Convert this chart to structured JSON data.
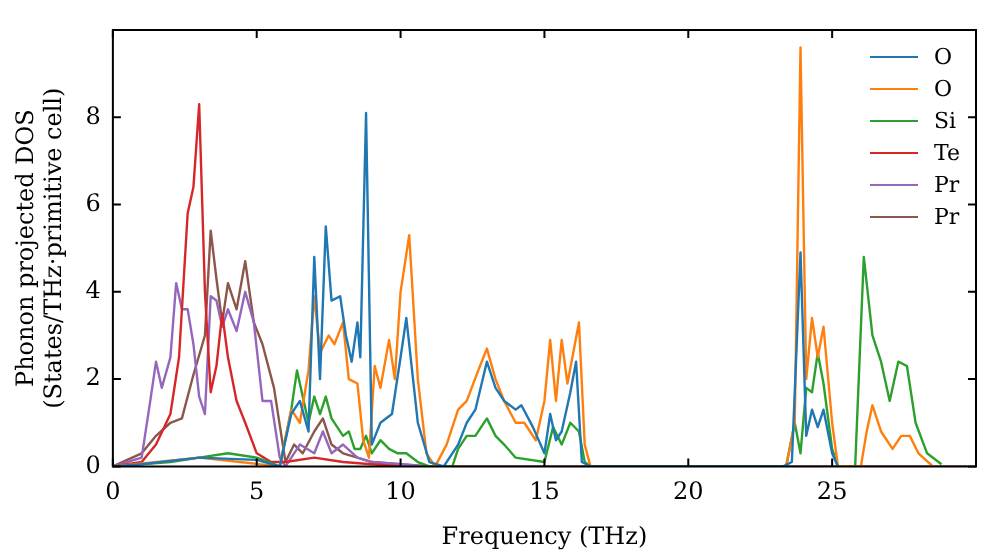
{
  "chart_data": {
    "type": "line",
    "xlabel": "Frequency (THz)",
    "ylabel": "Phonon projected DOS\n(States/THz·primitive cell)",
    "xlim": [
      0,
      30
    ],
    "xticks": [
      0,
      5,
      10,
      15,
      20,
      25
    ],
    "ylim": [
      0,
      10
    ],
    "yticks": [
      0,
      2,
      4,
      6,
      8
    ],
    "grid": false,
    "legend": "top right",
    "marker": "none",
    "line_style": "solid",
    "series": [
      {
        "name": "O",
        "color": "#1f77b4",
        "x": [
          0,
          1,
          3,
          5,
          5.8,
          6.2,
          6.5,
          6.8,
          7.0,
          7.2,
          7.4,
          7.6,
          7.9,
          8.1,
          8.3,
          8.5,
          8.6,
          8.8,
          9.0,
          9.3,
          9.7,
          10.0,
          10.2,
          10.6,
          11,
          11.5,
          12,
          12.3,
          12.6,
          13.0,
          13.3,
          13.6,
          14.0,
          14.2,
          14.6,
          15.0,
          15.2,
          15.4,
          15.6,
          15.9,
          16.1,
          16.3,
          16.6,
          23.3,
          23.6,
          23.9,
          24.1,
          24.3,
          24.5,
          24.7,
          25.0,
          25.2
        ],
        "values": [
          0,
          0.05,
          0.2,
          0.15,
          0,
          1.2,
          1.5,
          0.8,
          4.8,
          2.0,
          5.5,
          3.8,
          3.9,
          3.0,
          2.4,
          3.3,
          2.5,
          8.1,
          0.5,
          1.0,
          1.2,
          2.5,
          3.4,
          1.0,
          0.1,
          0,
          0.5,
          1.0,
          1.3,
          2.4,
          1.8,
          1.5,
          1.3,
          1.4,
          0.9,
          0.3,
          1.2,
          0.6,
          0.8,
          1.7,
          2.4,
          0.1,
          0,
          0,
          0.1,
          4.9,
          0.7,
          1.3,
          0.9,
          1.3,
          0.3,
          0
        ]
      },
      {
        "name": "O",
        "color": "#ff7f0e",
        "x": [
          0,
          3,
          5.8,
          6.2,
          6.5,
          6.8,
          7.0,
          7.2,
          7.5,
          7.7,
          8.0,
          8.2,
          8.5,
          8.7,
          8.9,
          9.1,
          9.3,
          9.6,
          9.8,
          10.0,
          10.3,
          10.6,
          10.9,
          11.2,
          11.6,
          12.0,
          12.3,
          12.7,
          13.0,
          13.3,
          13.6,
          14.0,
          14.3,
          14.7,
          15.0,
          15.2,
          15.4,
          15.6,
          15.8,
          16.0,
          16.2,
          16.4,
          16.6,
          23.4,
          23.7,
          23.9,
          24.1,
          24.3,
          24.5,
          24.7,
          25.0,
          25.2,
          26,
          26.2,
          26.4,
          26.7,
          27.1,
          27.4,
          27.7,
          28.0,
          28.5
        ],
        "values": [
          0,
          0.2,
          0,
          1.3,
          1.0,
          2.2,
          3.9,
          2.6,
          3.0,
          2.8,
          3.3,
          2.0,
          1.9,
          0.6,
          0.2,
          2.3,
          1.8,
          2.9,
          2.0,
          4.0,
          5.3,
          2.0,
          0.3,
          0,
          0.5,
          1.3,
          1.5,
          2.2,
          2.7,
          2.0,
          1.5,
          1.0,
          1.0,
          0.6,
          1.5,
          2.9,
          1.5,
          2.9,
          1.9,
          2.6,
          3.3,
          0.5,
          0,
          0,
          1.0,
          9.6,
          2.0,
          3.4,
          2.5,
          3.2,
          1.0,
          0,
          0,
          0.8,
          1.4,
          0.8,
          0.4,
          0.7,
          0.7,
          0.3,
          0
        ]
      },
      {
        "name": "Si",
        "color": "#2ca02c",
        "x": [
          0,
          2,
          3,
          4,
          5,
          5.8,
          6.2,
          6.4,
          6.8,
          7.0,
          7.2,
          7.4,
          7.6,
          8.0,
          8.2,
          8.4,
          8.6,
          8.8,
          9.0,
          9.3,
          9.6,
          9.9,
          10.2,
          10.6,
          11,
          11.8,
          12.0,
          12.3,
          12.6,
          13.0,
          13.3,
          13.6,
          14,
          15,
          15.3,
          15.6,
          15.9,
          16.2,
          16.4,
          16.6,
          23.4,
          23.7,
          23.9,
          24.1,
          24.3,
          24.5,
          24.7,
          25.0,
          25.2,
          25.8,
          26.1,
          26.4,
          26.7,
          27.0,
          27.3,
          27.6,
          27.9,
          28.3,
          28.8
        ],
        "values": [
          0,
          0.1,
          0.2,
          0.3,
          0.2,
          0,
          1.3,
          2.2,
          1.0,
          1.6,
          1.2,
          1.6,
          1.1,
          0.7,
          0.8,
          0.4,
          0.4,
          0.7,
          0.3,
          0.6,
          0.4,
          0.3,
          0.3,
          0.1,
          0,
          0,
          0.4,
          0.7,
          0.7,
          1.1,
          0.7,
          0.5,
          0.2,
          0.1,
          0.9,
          0.5,
          1.0,
          0.8,
          0.1,
          0,
          0,
          1.0,
          0.3,
          1.8,
          1.7,
          2.6,
          1.9,
          0.4,
          0,
          0,
          4.8,
          3.0,
          2.4,
          1.5,
          2.4,
          2.3,
          1.0,
          0.3,
          0.05
        ]
      },
      {
        "name": "Te",
        "color": "#d62728",
        "x": [
          0,
          1,
          1.5,
          2,
          2.3,
          2.6,
          2.8,
          3.0,
          3.2,
          3.4,
          3.6,
          3.8,
          4.0,
          4.3,
          4.6,
          5.0,
          5.5,
          6,
          7,
          8,
          9,
          10
        ],
        "values": [
          0,
          0.1,
          0.5,
          1.2,
          2.5,
          5.8,
          6.4,
          8.3,
          4.0,
          1.7,
          2.3,
          3.5,
          2.5,
          1.5,
          1.0,
          0.3,
          0.1,
          0.1,
          0.2,
          0.1,
          0.05,
          0
        ]
      },
      {
        "name": "Pr",
        "color": "#9467bd",
        "x": [
          0,
          1,
          1.3,
          1.5,
          1.7,
          2.0,
          2.2,
          2.4,
          2.6,
          2.8,
          3.0,
          3.2,
          3.4,
          3.6,
          3.8,
          4.0,
          4.3,
          4.6,
          4.9,
          5.2,
          5.5,
          5.8,
          6,
          6.5,
          7,
          7.3,
          7.6,
          8,
          8.5,
          9,
          10,
          11
        ],
        "values": [
          0,
          0.2,
          1.5,
          2.4,
          1.8,
          2.5,
          4.2,
          3.6,
          3.6,
          2.8,
          1.6,
          1.2,
          3.9,
          3.8,
          3.2,
          3.6,
          3.1,
          4.0,
          3.3,
          1.5,
          1.5,
          0.2,
          0,
          0.5,
          0.3,
          0.8,
          0.3,
          0.5,
          0.2,
          0.1,
          0.05,
          0
        ]
      },
      {
        "name": "Pr",
        "color": "#8c564b",
        "x": [
          0,
          1,
          1.5,
          2,
          2.4,
          2.8,
          3.2,
          3.4,
          3.6,
          3.8,
          4.0,
          4.3,
          4.6,
          4.9,
          5.2,
          5.6,
          6.0,
          6.3,
          6.6,
          7,
          7.3,
          7.6,
          8,
          8.5,
          9,
          10,
          11,
          29.7
        ],
        "values": [
          0,
          0.3,
          0.7,
          1.0,
          1.1,
          2.1,
          3.0,
          5.4,
          4.3,
          3.3,
          4.2,
          3.6,
          4.7,
          3.3,
          2.8,
          1.8,
          0.1,
          0.5,
          0.3,
          0.8,
          1.1,
          0.5,
          0.3,
          0.2,
          0.1,
          0.05,
          0,
          0
        ]
      }
    ]
  }
}
